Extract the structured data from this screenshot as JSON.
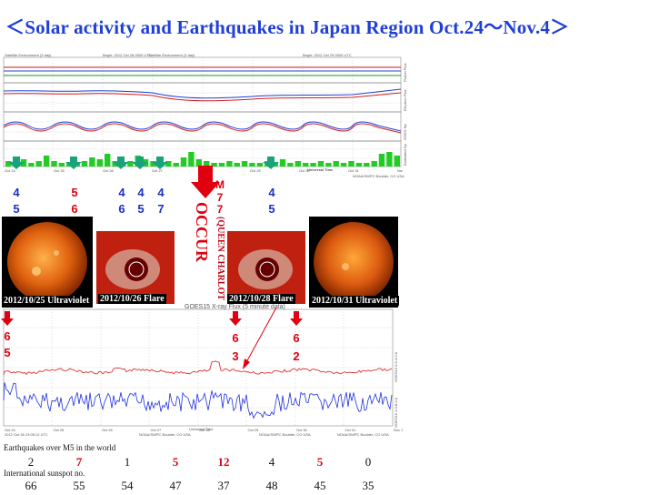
{
  "title": "＜Solar activity and Earthquakes  in Japan Region Oct.24～Nov.4＞",
  "top_chart": {
    "header_left": "Satellite Environment (3 day)",
    "header_mid1": "Begin: 2012 Oct 26 0000 UTC",
    "header_mid2": "Satellite Environment (3 day)",
    "header_mid3": "Begin: 2012 Oct 29 0000 UTC",
    "header_right": "Satellite Environment (3 day)",
    "panel_labels": [
      "Proton Flux",
      "Electron Flux",
      "GOES Hp",
      "Estimated Kp"
    ],
    "date_ticks": [
      "Oct 24",
      "Oct 25",
      "Oct 26",
      "Oct 27",
      "Oct 28",
      "Oct 29",
      "Oct 30",
      "Oct 31",
      "Nov 1"
    ],
    "footer": "Universal Time",
    "credit": "NOAA/SWPC Boulder, CO USA",
    "kp_bars": [
      0.3,
      0.2,
      0.4,
      0.2,
      0.3,
      0.6,
      0.3,
      0.2,
      0.2,
      0.2,
      0.3,
      0.5,
      0.4,
      0.7,
      0.3,
      0.2,
      0.3,
      0.6,
      0.4,
      0.3,
      0.2,
      0.3,
      0.2,
      0.5,
      0.8,
      0.4,
      0.3,
      0.2,
      0.2,
      0.3,
      0.2,
      0.3,
      0.2,
      0.2,
      0.3,
      0.2,
      0.4,
      0.2,
      0.3,
      0.2,
      0.2,
      0.3,
      0.2,
      0.3,
      0.2,
      0.3,
      0.2,
      0.2,
      0.3,
      0.7,
      0.8,
      0.6
    ]
  },
  "markers_top": [
    {
      "top": "4",
      "bottom": "5",
      "color": "blue"
    },
    {
      "top": "5",
      "bottom": "6",
      "color": "red"
    },
    {
      "top": "4",
      "bottom": "6",
      "color": "blue"
    },
    {
      "top": "4",
      "bottom": "5",
      "color": "blue"
    },
    {
      "top": "4",
      "bottom": "7",
      "color": "blue"
    },
    {
      "top": "4",
      "bottom": "5",
      "color": "blue"
    }
  ],
  "m7_event": {
    "mag_label": "M",
    "mag_top": "7",
    "mag_bottom": "7",
    "occur": "OCCUR",
    "location": "(QUEEN CHARLOTTE ISLANDS)"
  },
  "images": [
    {
      "caption": "2012/10/25 Ultraviolet"
    },
    {
      "caption": "2012/10/26 Flare"
    },
    {
      "caption": "2012/10/28 Flare"
    },
    {
      "caption": "2012/10/31 Ultraviolet"
    }
  ],
  "xray_chart": {
    "header": "GOES15 X-ray Flux (5 minute data)",
    "right_label_1": "GOES15 0.5-4.0 A",
    "right_label_2": "GOES15 1.0-8.0 A",
    "date_ticks": [
      "Oct 24",
      "Oct 25",
      "Oct 26",
      "Oct 27",
      "Oct 28",
      "Oct 29",
      "Oct 30",
      "Oct 31",
      "Nov 1"
    ],
    "footer_left": "2012 Oct 26 23:05:12 UTC",
    "footer_mid": "NOAA/SWPC Boulder, CO USA",
    "footer_mid2": "Universal Time",
    "footer_right": "NOAA/SWPC Boulder, CO USA",
    "footer_mid3": "NOAA/SWPC Boulder, CO USA"
  },
  "markers_bottom": [
    {
      "top": "6",
      "bottom": "5"
    },
    {
      "top": "6",
      "bottom": "3"
    },
    {
      "top": "6",
      "bottom": "2"
    }
  ],
  "table": {
    "row1_label": "Earthquakes over M5 in the world",
    "earthquakes": [
      {
        "value": "2",
        "red": false
      },
      {
        "value": "7",
        "red": true
      },
      {
        "value": "1",
        "red": false
      },
      {
        "value": "5",
        "red": true
      },
      {
        "value": "12",
        "red": true
      },
      {
        "value": "4",
        "red": false
      },
      {
        "value": "5",
        "red": true
      },
      {
        "value": "0",
        "red": false
      }
    ],
    "row2_label": "International sunspot no.",
    "sunspots": [
      "66",
      "55",
      "54",
      "47",
      "37",
      "48",
      "45",
      "35"
    ]
  },
  "colors": {
    "title": "#1f3fd6",
    "blue_marker": "#1e2fbf",
    "red_marker": "#e00010",
    "arrow_green": "#1aa37a",
    "arrow_red": "#e00010",
    "kp_bar": "#22cc22",
    "xray_red": "#e03030",
    "xray_blue": "#2030e0"
  }
}
